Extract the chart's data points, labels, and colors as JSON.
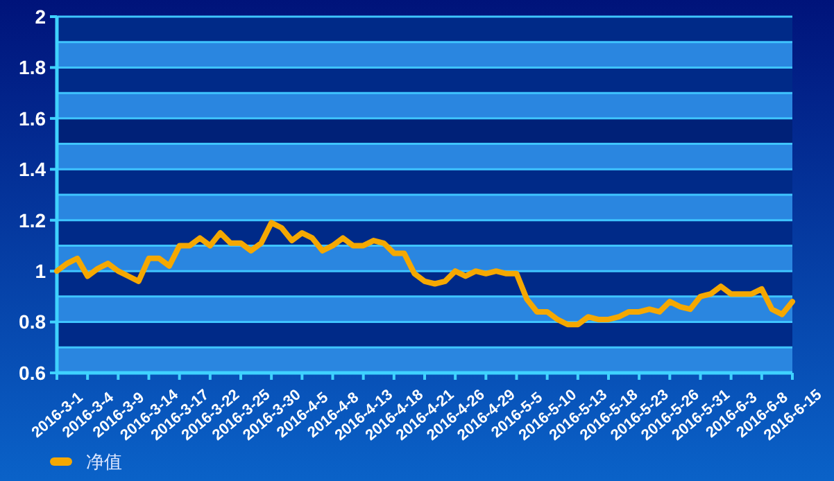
{
  "chart_data": {
    "type": "line",
    "categories": [
      "2016-3-1",
      null,
      null,
      "2016-3-4",
      null,
      null,
      "2016-3-9",
      null,
      null,
      "2016-3-14",
      null,
      null,
      "2016-3-17",
      null,
      null,
      "2016-3-22",
      null,
      null,
      "2016-3-25",
      null,
      null,
      "2016-3-30",
      null,
      null,
      "2016-4-5",
      null,
      null,
      "2016-4-8",
      null,
      null,
      "2016-4-13",
      null,
      null,
      "2016-4-18",
      null,
      null,
      "2016-4-21",
      null,
      null,
      "2016-4-26",
      null,
      null,
      "2016-4-29",
      null,
      null,
      "2016-5-5",
      null,
      null,
      "2016-5-10",
      null,
      null,
      "2016-5-13",
      null,
      null,
      "2016-5-18",
      null,
      null,
      "2016-5-23",
      null,
      null,
      "2016-5-26",
      null,
      null,
      "2016-5-31",
      null,
      null,
      "2016-6-3",
      null,
      null,
      "2016-6-8",
      null,
      null,
      "2016-6-15"
    ],
    "series": [
      {
        "name": "净值",
        "color": "#f5a800",
        "values": [
          1.0,
          1.03,
          1.05,
          0.98,
          1.01,
          1.03,
          1.0,
          0.98,
          0.96,
          1.05,
          1.05,
          1.02,
          1.1,
          1.1,
          1.13,
          1.1,
          1.15,
          1.11,
          1.11,
          1.08,
          1.11,
          1.19,
          1.17,
          1.12,
          1.15,
          1.13,
          1.08,
          1.1,
          1.13,
          1.1,
          1.1,
          1.12,
          1.11,
          1.07,
          1.07,
          0.99,
          0.96,
          0.95,
          0.96,
          1.0,
          0.98,
          1.0,
          0.99,
          1.0,
          0.99,
          0.99,
          0.89,
          0.84,
          0.84,
          0.81,
          0.79,
          0.79,
          0.82,
          0.81,
          0.81,
          0.82,
          0.84,
          0.84,
          0.85,
          0.84,
          0.88,
          0.86,
          0.85,
          0.9,
          0.91,
          0.94,
          0.91,
          0.91,
          0.91,
          0.93,
          0.85,
          0.83,
          0.88
        ]
      }
    ],
    "ylim": [
      0.6,
      2
    ],
    "yticks": [
      0.6,
      {
        "value": 0.7,
        "label": null
      },
      0.8,
      {
        "value": 0.9,
        "label": null
      },
      1,
      {
        "value": 1.1,
        "label": null
      },
      1.2,
      {
        "value": 1.3,
        "label": null
      },
      1.4,
      {
        "value": 1.5,
        "label": null
      },
      1.6,
      {
        "value": 1.7,
        "label": null
      },
      1.8,
      {
        "value": 1.9,
        "label": null
      },
      2
    ],
    "bands": [
      {
        "axis": "y",
        "from": 0.6,
        "to": 0.7,
        "color": "#2a86e0"
      },
      {
        "axis": "y",
        "from": 0.7,
        "to": 0.8,
        "color": "#002a88"
      },
      {
        "axis": "y",
        "from": 0.8,
        "to": 0.9,
        "color": "#2a86e0"
      },
      {
        "axis": "y",
        "from": 0.9,
        "to": 1,
        "color": "#002a88"
      },
      {
        "axis": "y",
        "from": 1,
        "to": 1.1,
        "color": "#2a86e0"
      },
      {
        "axis": "y",
        "from": 1.1,
        "to": 1.2,
        "color": "#002a88"
      },
      {
        "axis": "y",
        "from": 1.2,
        "to": 1.3,
        "color": "#2a86e0"
      },
      {
        "axis": "y",
        "from": 1.3,
        "to": 1.4,
        "color": "#002a88"
      },
      {
        "axis": "y",
        "from": 1.4,
        "to": 1.5,
        "color": "#2a86e0"
      },
      {
        "axis": "y",
        "from": 1.5,
        "to": 1.6,
        "color": "#002178"
      },
      {
        "axis": "y",
        "from": 1.6,
        "to": 1.7,
        "color": "#2a86e0"
      },
      {
        "axis": "y",
        "from": 1.7,
        "to": 1.8,
        "color": "#002a88"
      },
      {
        "axis": "y",
        "from": 1.8,
        "to": 1.9,
        "color": "#2a86e0"
      },
      {
        "axis": "y",
        "from": 1.9,
        "to": 2,
        "color": "#002a88"
      }
    ],
    "grid": "y",
    "legend": "bottom left",
    "marker": "none",
    "line_style": "solid"
  }
}
